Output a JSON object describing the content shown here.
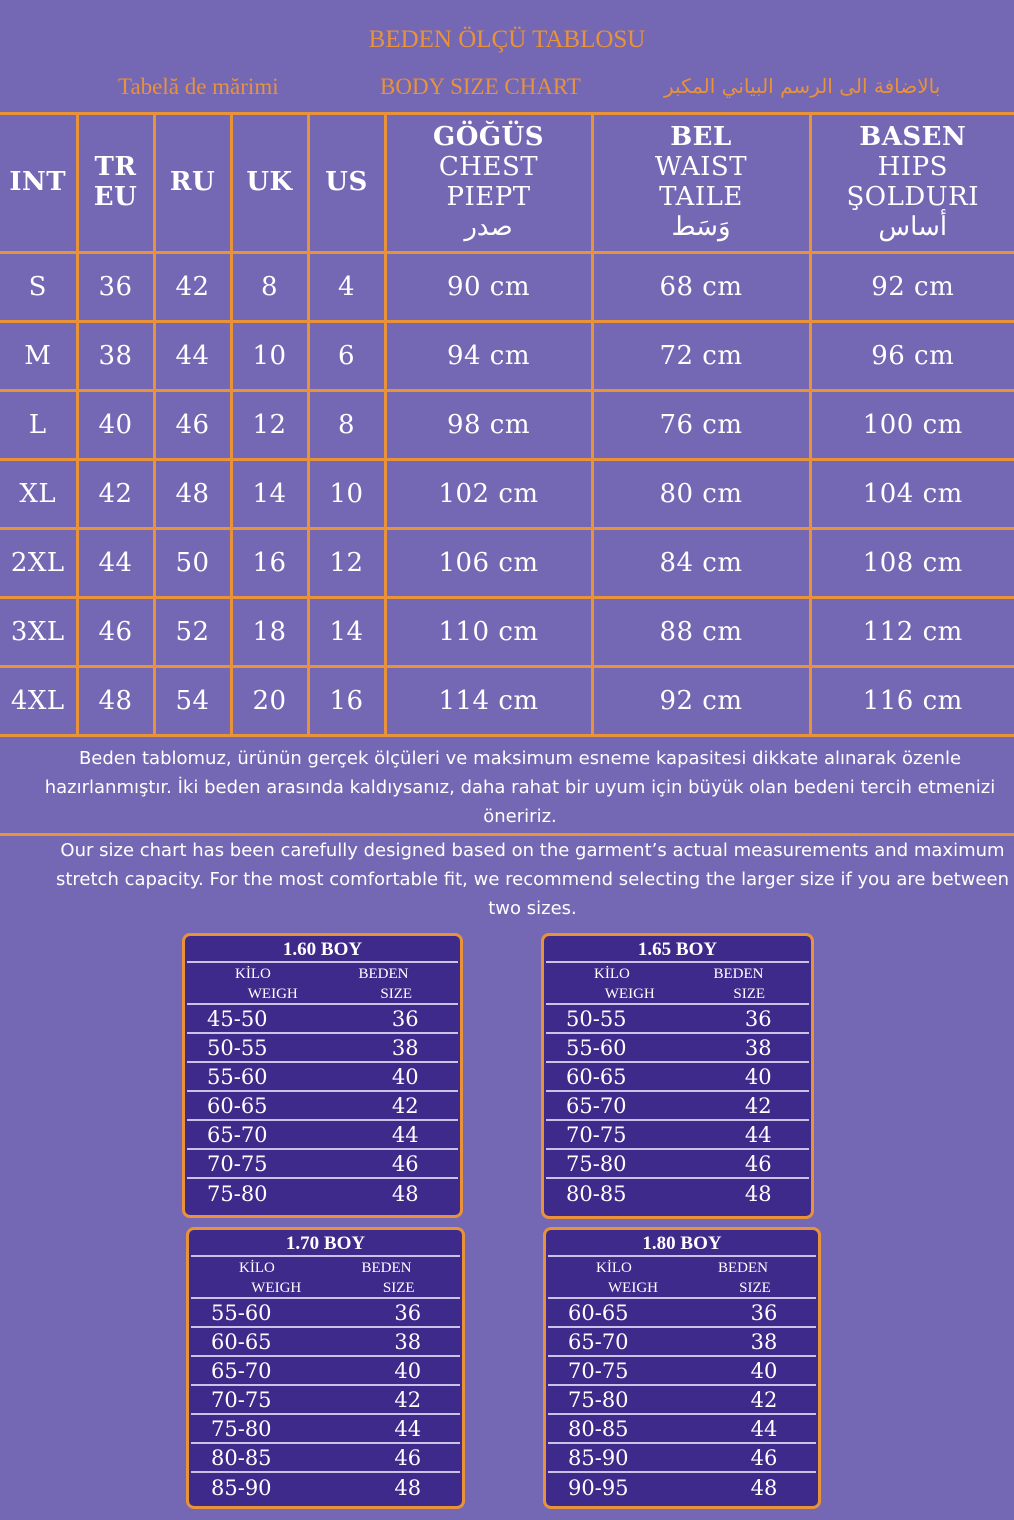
{
  "title": "BEDEN ÖLÇÜ TABLOSU",
  "subtitles": [
    "Tabelă de mărimi",
    "BODY SIZE CHART",
    "بالاضافة الى الرسم البياني المكبر"
  ],
  "colors": {
    "background": "#7467b4",
    "accent": "#e8923a",
    "box_fill": "#3e2a8b"
  },
  "table": {
    "headers": [
      {
        "bold": "INT",
        "lines": []
      },
      {
        "bold": "TR",
        "lines": [
          "EU"
        ],
        "bold_all": true
      },
      {
        "bold": "RU",
        "lines": []
      },
      {
        "bold": "UK",
        "lines": []
      },
      {
        "bold": "US",
        "lines": []
      },
      {
        "bold": "GÖĞÜS",
        "lines": [
          "CHEST",
          "PIEPT",
          "صدر"
        ]
      },
      {
        "bold": "BEL",
        "lines": [
          "WAIST",
          "TAILE",
          "وَسَط"
        ]
      },
      {
        "bold": "BASEN",
        "lines": [
          "HIPS",
          "ŞOLDURI",
          "أساس"
        ]
      }
    ],
    "rows": [
      [
        "S",
        "36",
        "42",
        "8",
        "4",
        "90 cm",
        "68 cm",
        "92 cm"
      ],
      [
        "M",
        "38",
        "44",
        "10",
        "6",
        "94 cm",
        "72 cm",
        "96 cm"
      ],
      [
        "L",
        "40",
        "46",
        "12",
        "8",
        "98 cm",
        "76 cm",
        "100 cm"
      ],
      [
        "XL",
        "42",
        "48",
        "14",
        "10",
        "102 cm",
        "80 cm",
        "104 cm"
      ],
      [
        "2XL",
        "44",
        "50",
        "16",
        "12",
        "106 cm",
        "84 cm",
        "108 cm"
      ],
      [
        "3XL",
        "46",
        "52",
        "18",
        "14",
        "110 cm",
        "88 cm",
        "112 cm"
      ],
      [
        "4XL",
        "48",
        "54",
        "20",
        "16",
        "114 cm",
        "92 cm",
        "116 cm"
      ]
    ]
  },
  "note_tr": "Beden tablomuz, ürünün gerçek ölçüleri ve maksimum esneme kapasitesi dikkate alınarak özenle hazırlanmıştır. İki beden arasında kaldıysanız, daha rahat bir uyum için büyük olan bedeni tercih etmenizi öneririz.",
  "note_en": "Our size chart has been carefully designed based on the garment’s actual measurements and maximum stretch capacity. For the most comfortable fit, we recommend selecting the larger size if you are between two sizes.",
  "boxes": [
    {
      "title": "1.60 BOY",
      "col1": [
        "KİLO",
        "WEIGH"
      ],
      "col2": [
        "BEDEN",
        "SIZE"
      ],
      "rows": [
        [
          "45-50",
          "36"
        ],
        [
          "50-55",
          "38"
        ],
        [
          "55-60",
          "40"
        ],
        [
          "60-65",
          "42"
        ],
        [
          "65-70",
          "44"
        ],
        [
          "70-75",
          "46"
        ],
        [
          "75-80",
          "48"
        ]
      ]
    },
    {
      "title": "1.65 BOY",
      "col1": [
        "KİLO",
        "WEIGH"
      ],
      "col2": [
        "BEDEN",
        "SIZE"
      ],
      "rows": [
        [
          "50-55",
          "36"
        ],
        [
          "55-60",
          "38"
        ],
        [
          "60-65",
          "40"
        ],
        [
          "65-70",
          "42"
        ],
        [
          "70-75",
          "44"
        ],
        [
          "75-80",
          "46"
        ],
        [
          "80-85",
          "48"
        ]
      ]
    },
    {
      "title": "1.70 BOY",
      "col1": [
        "KİLO",
        "WEIGH"
      ],
      "col2": [
        "BEDEN",
        "SIZE"
      ],
      "rows": [
        [
          "55-60",
          "36"
        ],
        [
          "60-65",
          "38"
        ],
        [
          "65-70",
          "40"
        ],
        [
          "70-75",
          "42"
        ],
        [
          "75-80",
          "44"
        ],
        [
          "80-85",
          "46"
        ],
        [
          "85-90",
          "48"
        ]
      ]
    },
    {
      "title": "1.80 BOY",
      "col1": [
        "KİLO",
        "WEIGH"
      ],
      "col2": [
        "BEDEN",
        "SIZE"
      ],
      "rows": [
        [
          "60-65",
          "36"
        ],
        [
          "65-70",
          "38"
        ],
        [
          "70-75",
          "40"
        ],
        [
          "75-80",
          "42"
        ],
        [
          "80-85",
          "44"
        ],
        [
          "85-90",
          "46"
        ],
        [
          "90-95",
          "48"
        ]
      ]
    }
  ]
}
